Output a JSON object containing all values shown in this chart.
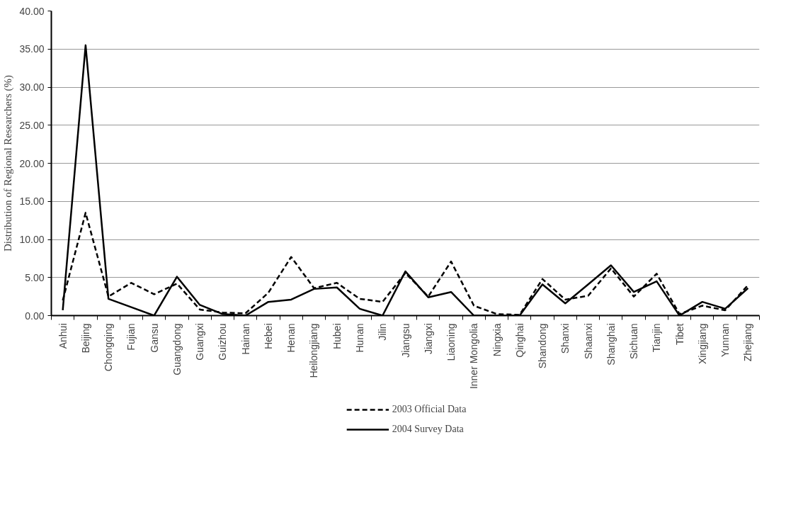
{
  "chart_data": {
    "type": "line",
    "ylabel": "Distribution of Regional Researchers (%)",
    "categories": [
      "Anhui",
      "Beijing",
      "Chongqing",
      "Fujian",
      "Gansu",
      "Guangdong",
      "Guangxi",
      "Guizhou",
      "Hainan",
      "Hebei",
      "Henan",
      "Heilongjiang",
      "Hubei",
      "Hunan",
      "Jilin",
      "Jiangsu",
      "Jiangxi",
      "Liaoning",
      "Inner Mongolia",
      "Ningxia",
      "Qinghai",
      "Shandong",
      "Shanxi",
      "Shaanxi",
      "Shanghai",
      "Sichuan",
      "Tianjin",
      "Tibet",
      "Xingjiang",
      "Yunnan",
      "Zhejiang"
    ],
    "series": [
      {
        "name": "2003 Official Data",
        "color": "#000000",
        "line_style": "dashed",
        "values": [
          2.0,
          13.5,
          2.5,
          4.3,
          2.8,
          4.2,
          0.8,
          0.4,
          0.3,
          3.0,
          7.7,
          3.6,
          4.3,
          2.2,
          1.8,
          5.6,
          2.5,
          7.1,
          1.3,
          0.2,
          0.1,
          4.8,
          2.1,
          2.6,
          6.2,
          2.5,
          5.5,
          0.2,
          1.3,
          0.7,
          4.0
        ]
      },
      {
        "name": "2004 Survey Data",
        "color": "#000000",
        "line_style": "solid",
        "values": [
          0.7,
          35.5,
          2.2,
          1.1,
          0.0,
          5.1,
          1.4,
          0.2,
          0.0,
          1.8,
          2.1,
          3.5,
          3.7,
          0.9,
          0.0,
          5.8,
          2.4,
          3.1,
          0.0,
          0.0,
          0.0,
          4.1,
          1.6,
          4.1,
          6.6,
          3.1,
          4.5,
          0.0,
          1.8,
          0.9,
          3.6
        ]
      }
    ],
    "ylim": [
      0,
      40
    ],
    "yticks": [
      {
        "value": 0,
        "label": "0.00"
      },
      {
        "value": 5,
        "label": "5.00"
      },
      {
        "value": 10,
        "label": "10.00"
      },
      {
        "value": 15,
        "label": "15.00"
      },
      {
        "value": 20,
        "label": "20.00"
      },
      {
        "value": 25,
        "label": "25.00"
      },
      {
        "value": 30,
        "label": "30.00"
      },
      {
        "value": 35,
        "label": "35.00"
      },
      {
        "value": 40,
        "label": "40.00"
      }
    ],
    "grid": "y",
    "legend": "bottom",
    "marker": "none"
  }
}
